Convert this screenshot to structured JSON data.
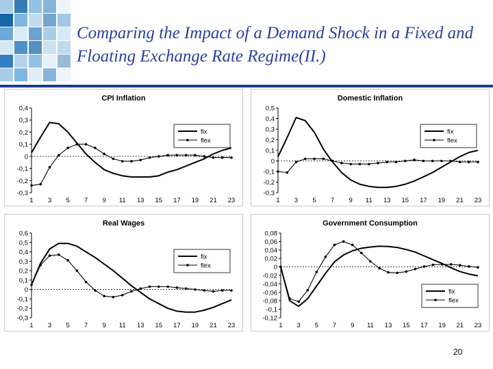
{
  "slide": {
    "title": "Comparing the Impact of a Demand Shock in a Fixed and Floating Exchange Rate Regime(II.)",
    "page_number": "20"
  },
  "colors": {
    "title": "#2a3f9e",
    "rule": "#1d3c8c",
    "fix_line": "#000000",
    "flex_line": "#000000",
    "decor_tiles": [
      "#1565a8",
      "#2f7fc1",
      "#6aaad9",
      "#a9cde9",
      "#d5e7f4"
    ]
  },
  "chart_data": [
    {
      "type": "line",
      "title": "CPI Inflation",
      "x": [
        1,
        2,
        3,
        4,
        5,
        6,
        7,
        8,
        9,
        10,
        11,
        12,
        13,
        14,
        15,
        16,
        17,
        18,
        19,
        20,
        21,
        22,
        23
      ],
      "xticks": [
        1,
        3,
        5,
        7,
        9,
        11,
        13,
        15,
        17,
        19,
        21,
        23
      ],
      "ylim": [
        -0.3,
        0.4
      ],
      "yticks": [
        -0.3,
        -0.2,
        -0.1,
        0,
        0.1,
        0.2,
        0.3,
        0.4
      ],
      "ytick_labels": [
        "-0,3",
        "-0,2",
        "-0,1",
        "0",
        "0,1",
        "0,2",
        "0,3",
        "0,4"
      ],
      "legend": "right",
      "series": [
        {
          "name": "fix",
          "marker": false,
          "values": [
            0.03,
            0.16,
            0.28,
            0.27,
            0.2,
            0.11,
            0.02,
            -0.05,
            -0.11,
            -0.14,
            -0.16,
            -0.17,
            -0.17,
            -0.17,
            -0.16,
            -0.13,
            -0.11,
            -0.08,
            -0.05,
            -0.02,
            0.02,
            0.05,
            0.07
          ]
        },
        {
          "name": "flex",
          "marker": true,
          "values": [
            -0.24,
            -0.23,
            -0.09,
            0.01,
            0.07,
            0.1,
            0.1,
            0.07,
            0.02,
            -0.02,
            -0.04,
            -0.04,
            -0.03,
            -0.01,
            0.0,
            0.01,
            0.01,
            0.01,
            0.01,
            0.0,
            -0.01,
            -0.01,
            -0.01
          ]
        }
      ]
    },
    {
      "type": "line",
      "title": "Domestic Inflation",
      "x": [
        1,
        2,
        3,
        4,
        5,
        6,
        7,
        8,
        9,
        10,
        11,
        12,
        13,
        14,
        15,
        16,
        17,
        18,
        19,
        20,
        21,
        22,
        23
      ],
      "xticks": [
        1,
        3,
        5,
        7,
        9,
        11,
        13,
        15,
        17,
        19,
        21,
        23
      ],
      "ylim": [
        -0.3,
        0.5
      ],
      "yticks": [
        -0.3,
        -0.2,
        -0.1,
        0,
        0.1,
        0.2,
        0.3,
        0.4,
        0.5
      ],
      "ytick_labels": [
        "-0,3",
        "-0,2",
        "-0,1",
        "0",
        "0,1",
        "0,2",
        "0,3",
        "0,4",
        "0,5"
      ],
      "legend": "right",
      "series": [
        {
          "name": "fix",
          "marker": false,
          "values": [
            0.04,
            0.22,
            0.41,
            0.38,
            0.27,
            0.11,
            -0.01,
            -0.11,
            -0.18,
            -0.22,
            -0.24,
            -0.25,
            -0.25,
            -0.24,
            -0.22,
            -0.19,
            -0.15,
            -0.11,
            -0.06,
            -0.01,
            0.04,
            0.08,
            0.1
          ]
        },
        {
          "name": "flex",
          "marker": true,
          "values": [
            -0.1,
            -0.11,
            -0.01,
            0.02,
            0.02,
            0.02,
            0.0,
            -0.02,
            -0.03,
            -0.03,
            -0.03,
            -0.02,
            -0.01,
            -0.01,
            0.0,
            0.01,
            0.0,
            0.0,
            0.0,
            0.0,
            -0.01,
            -0.01,
            -0.01
          ]
        }
      ]
    },
    {
      "type": "line",
      "title": "Real Wages",
      "x": [
        1,
        2,
        3,
        4,
        5,
        6,
        7,
        8,
        9,
        10,
        11,
        12,
        13,
        14,
        15,
        16,
        17,
        18,
        19,
        20,
        21,
        22,
        23
      ],
      "xticks": [
        1,
        3,
        5,
        7,
        9,
        11,
        13,
        15,
        17,
        19,
        21,
        23
      ],
      "ylim": [
        -0.3,
        0.6
      ],
      "yticks": [
        -0.3,
        -0.2,
        -0.1,
        0,
        0.1,
        0.2,
        0.3,
        0.4,
        0.5,
        0.6
      ],
      "ytick_labels": [
        "-0,3",
        "-0,2",
        "-0,1",
        "0",
        "0,1",
        "0,2",
        "0,3",
        "0,4",
        "0,5",
        "0,6"
      ],
      "legend": "right",
      "series": [
        {
          "name": "fix",
          "marker": false,
          "values": [
            0.05,
            0.28,
            0.43,
            0.49,
            0.49,
            0.46,
            0.4,
            0.34,
            0.27,
            0.2,
            0.12,
            0.04,
            -0.03,
            -0.1,
            -0.15,
            -0.2,
            -0.23,
            -0.24,
            -0.24,
            -0.22,
            -0.19,
            -0.15,
            -0.11
          ]
        },
        {
          "name": "flex",
          "marker": true,
          "values": [
            0.05,
            0.26,
            0.36,
            0.37,
            0.31,
            0.2,
            0.08,
            -0.01,
            -0.07,
            -0.08,
            -0.06,
            -0.02,
            0.01,
            0.03,
            0.03,
            0.03,
            0.02,
            0.01,
            0.0,
            -0.01,
            -0.02,
            -0.01,
            -0.01
          ]
        }
      ]
    },
    {
      "type": "line",
      "title": "Government Consumption",
      "x": [
        1,
        2,
        3,
        4,
        5,
        6,
        7,
        8,
        9,
        10,
        11,
        12,
        13,
        14,
        15,
        16,
        17,
        18,
        19,
        20,
        21,
        22,
        23
      ],
      "xticks": [
        1,
        3,
        5,
        7,
        9,
        11,
        13,
        15,
        17,
        19,
        21,
        23
      ],
      "ylim": [
        -0.12,
        0.08
      ],
      "yticks": [
        -0.12,
        -0.1,
        -0.08,
        -0.06,
        -0.04,
        -0.02,
        0,
        0.02,
        0.04,
        0.06,
        0.08
      ],
      "ytick_labels": [
        "-0,12",
        "-0,1",
        "-0,08",
        "-0,06",
        "-0,04",
        "-0,02",
        "0",
        "0,02",
        "0,04",
        "0,06",
        "0,08"
      ],
      "legend": "bottom-right",
      "series": [
        {
          "name": "fix",
          "marker": false,
          "values": [
            0.0,
            -0.08,
            -0.093,
            -0.075,
            -0.045,
            -0.015,
            0.012,
            0.028,
            0.038,
            0.044,
            0.047,
            0.049,
            0.048,
            0.046,
            0.041,
            0.035,
            0.026,
            0.017,
            0.008,
            -0.002,
            -0.011,
            -0.017,
            -0.021
          ]
        },
        {
          "name": "flex",
          "marker": true,
          "values": [
            0.0,
            -0.075,
            -0.082,
            -0.055,
            -0.012,
            0.024,
            0.052,
            0.06,
            0.052,
            0.033,
            0.013,
            -0.003,
            -0.013,
            -0.014,
            -0.011,
            -0.005,
            0.001,
            0.005,
            0.006,
            0.006,
            0.004,
            0.001,
            -0.001
          ]
        }
      ]
    }
  ]
}
